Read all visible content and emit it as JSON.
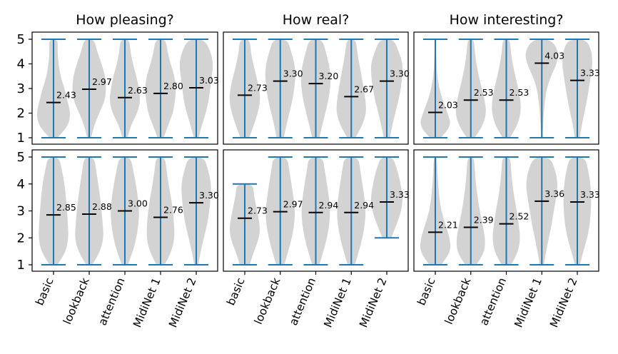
{
  "chart_data": {
    "type": "violin",
    "column_titles": [
      "How pleasing?",
      "How real?",
      "How interesting?"
    ],
    "categories": [
      "basic",
      "lookback",
      "attention",
      "MidiNet 1",
      "MidiNet 2"
    ],
    "yticks": [
      "1",
      "2",
      "3",
      "4",
      "5"
    ],
    "ylim": [
      1,
      5
    ],
    "colors": {
      "violin": "#d3d3d3",
      "whisker": "#1f77b4",
      "median": "#000000"
    },
    "panels": [
      {
        "row": 0,
        "col": 0,
        "title": "How pleasing?",
        "means": [
          2.43,
          2.97,
          2.63,
          2.8,
          3.03
        ],
        "mean_labels": [
          "2.43",
          "2.97",
          "2.63",
          "2.80",
          "3.03"
        ],
        "mins": [
          1,
          1,
          1,
          1,
          1
        ],
        "maxs": [
          5,
          5,
          5,
          5,
          5
        ]
      },
      {
        "row": 0,
        "col": 1,
        "title": "How real?",
        "means": [
          2.73,
          3.3,
          3.2,
          2.67,
          3.3
        ],
        "mean_labels": [
          "2.73",
          "3.30",
          "3.20",
          "2.67",
          "3.30"
        ],
        "mins": [
          1,
          1,
          1,
          1,
          1
        ],
        "maxs": [
          5,
          5,
          5,
          5,
          5
        ]
      },
      {
        "row": 0,
        "col": 2,
        "title": "How interesting?",
        "means": [
          2.03,
          2.53,
          2.53,
          4.03,
          3.33
        ],
        "mean_labels": [
          "2.03",
          "2.53",
          "2.53",
          "4.03",
          "3.33"
        ],
        "mins": [
          1,
          1,
          1,
          1,
          1
        ],
        "maxs": [
          5,
          5,
          5,
          5,
          5
        ]
      },
      {
        "row": 1,
        "col": 0,
        "means": [
          2.85,
          2.88,
          3.0,
          2.76,
          3.3
        ],
        "mean_labels": [
          "2.85",
          "2.88",
          "3.00",
          "2.76",
          "3.30"
        ],
        "mins": [
          1,
          1,
          1,
          1,
          1
        ],
        "maxs": [
          5,
          5,
          5,
          5,
          5
        ]
      },
      {
        "row": 1,
        "col": 1,
        "means": [
          2.73,
          2.97,
          2.94,
          2.94,
          3.33
        ],
        "mean_labels": [
          "2.73",
          "2.97",
          "2.94",
          "2.94",
          "3.33"
        ],
        "mins": [
          1,
          1,
          1,
          1,
          2
        ],
        "maxs": [
          4,
          5,
          5,
          5,
          5
        ]
      },
      {
        "row": 1,
        "col": 2,
        "means": [
          2.21,
          2.39,
          2.52,
          3.36,
          3.33
        ],
        "mean_labels": [
          "2.21",
          "2.39",
          "2.52",
          "3.36",
          "3.33"
        ],
        "mins": [
          1,
          1,
          1,
          1,
          1
        ],
        "maxs": [
          5,
          5,
          5,
          5,
          5
        ]
      }
    ]
  }
}
